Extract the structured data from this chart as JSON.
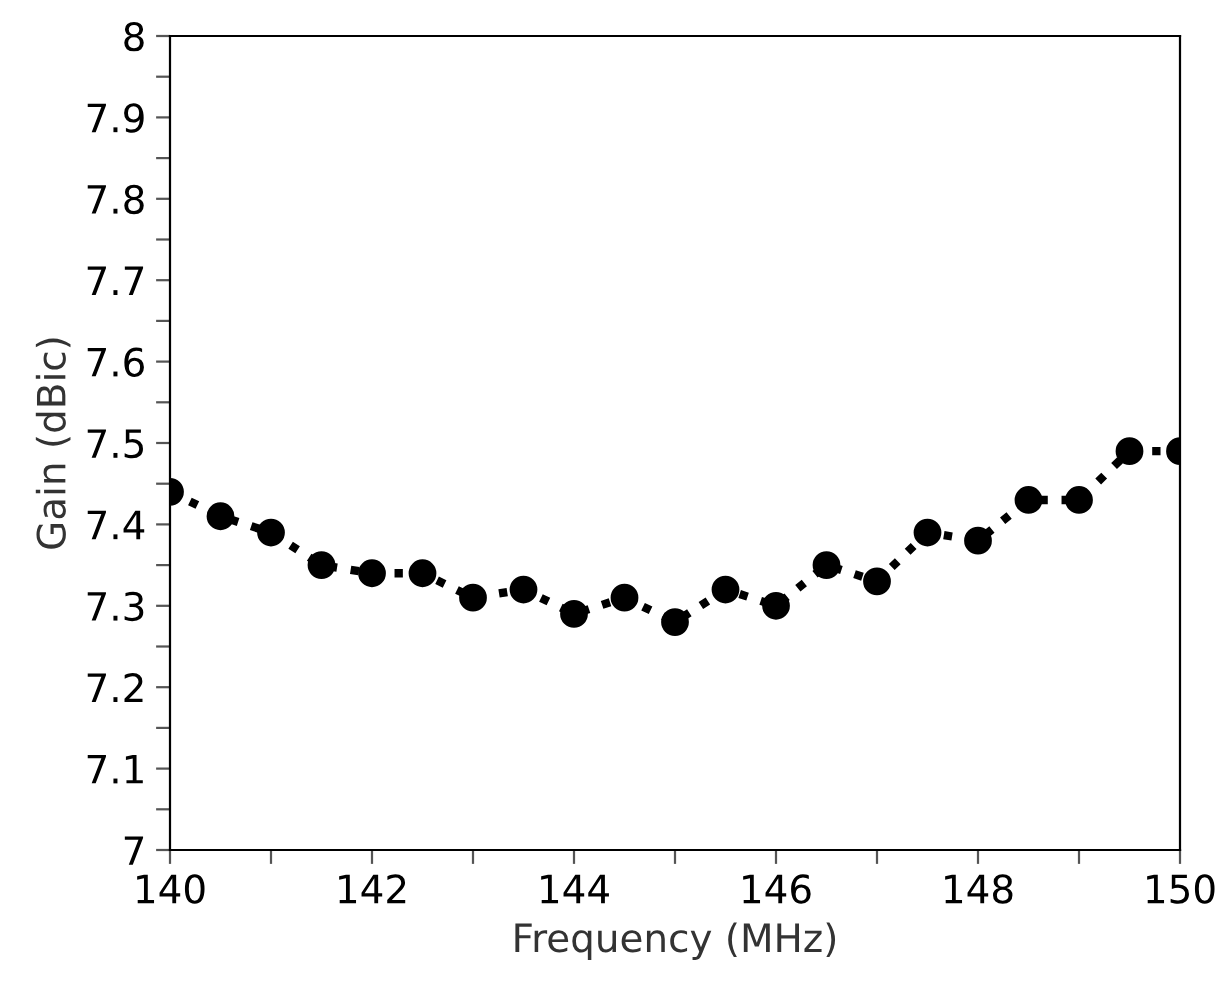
{
  "chart_data": {
    "type": "line",
    "xlabel": "Frequency (MHz)",
    "ylabel": "Gain (dBic)",
    "x": [
      140,
      140.5,
      141,
      141.5,
      142,
      142.5,
      143,
      143.5,
      144,
      144.5,
      145,
      145.5,
      146,
      146.5,
      147,
      147.5,
      148,
      148.5,
      149,
      149.5,
      150
    ],
    "series": [
      {
        "color": "#000000",
        "values": [
          7.44,
          7.41,
          7.39,
          7.35,
          7.34,
          7.34,
          7.31,
          7.32,
          7.29,
          7.31,
          7.28,
          7.32,
          7.3,
          7.35,
          7.33,
          7.39,
          7.38,
          7.43,
          7.43,
          7.49,
          7.49
        ]
      }
    ],
    "xlim": [
      140,
      150
    ],
    "xticks": [
      140,
      {
        "value": 141,
        "label": null
      },
      142,
      {
        "value": 143,
        "label": null
      },
      144,
      {
        "value": 145,
        "label": null
      },
      146,
      {
        "value": 147,
        "label": null
      },
      148,
      {
        "value": 149,
        "label": null
      },
      150
    ],
    "ylim": [
      7,
      8
    ],
    "yticks": [
      7,
      {
        "value": 7.05,
        "label": null
      },
      7.1,
      {
        "value": 7.15,
        "label": null
      },
      7.2,
      {
        "value": 7.25,
        "label": null
      },
      7.3,
      {
        "value": 7.35,
        "label": null
      },
      7.4,
      {
        "value": 7.45,
        "label": null
      },
      7.5,
      {
        "value": 7.55,
        "label": null
      },
      7.6,
      {
        "value": 7.65,
        "label": null
      },
      7.7,
      {
        "value": 7.75,
        "label": null
      },
      7.8,
      {
        "value": 7.85,
        "label": null
      },
      7.9,
      {
        "value": 7.95,
        "label": null
      },
      8
    ],
    "grid": false,
    "marker": "circle",
    "line_style": "dotted"
  }
}
